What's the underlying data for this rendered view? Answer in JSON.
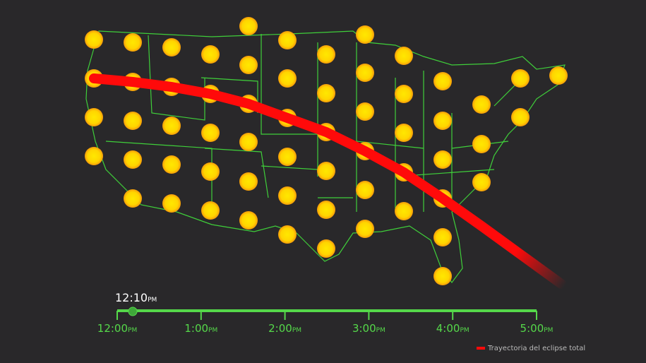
{
  "current_time": {
    "time": "12:10",
    "suffix": "PM"
  },
  "timeline": {
    "ticks": [
      {
        "time": "12:00",
        "suffix": "PM"
      },
      {
        "time": "1:00",
        "suffix": "PM"
      },
      {
        "time": "2:00",
        "suffix": "PM"
      },
      {
        "time": "3:00",
        "suffix": "PM"
      },
      {
        "time": "4:00",
        "suffix": "PM"
      },
      {
        "time": "5:00",
        "suffix": "PM"
      }
    ]
  },
  "legend": {
    "label": "Trayectoria del eclipse total"
  }
}
